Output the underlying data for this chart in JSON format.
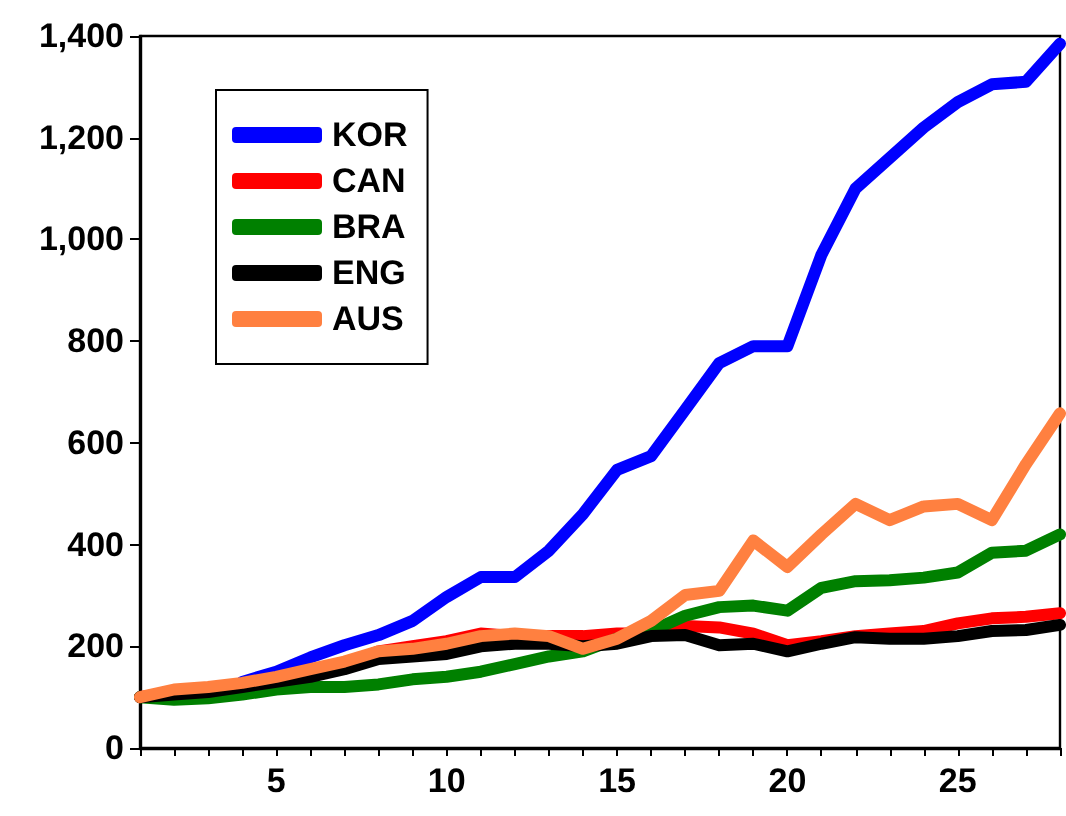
{
  "chart_data": {
    "type": "line",
    "x": [
      1,
      2,
      3,
      4,
      5,
      6,
      7,
      8,
      9,
      10,
      11,
      12,
      13,
      14,
      15,
      16,
      17,
      18,
      19,
      20,
      21,
      22,
      23,
      24,
      25,
      26,
      27,
      28
    ],
    "series": [
      {
        "name": "KOR",
        "color": "#0000ff",
        "values": [
          null,
          null,
          null,
          130,
          150,
          178,
          202,
          222,
          250,
          297,
          336,
          336,
          388,
          460,
          547,
          574,
          665,
          757,
          790,
          790,
          970,
          1100,
          1160,
          1220,
          1270,
          1305,
          1310,
          1385
        ]
      },
      {
        "name": "CAN",
        "color": "#ff0000",
        "values": [
          100,
          110,
          115,
          125,
          135,
          145,
          165,
          190,
          200,
          210,
          225,
          220,
          220,
          220,
          225,
          225,
          240,
          237,
          225,
          202,
          210,
          220,
          225,
          230,
          245,
          255,
          258,
          265
        ]
      },
      {
        "name": "BRA",
        "color": "#008000",
        "values": [
          100,
          95,
          98,
          105,
          115,
          120,
          120,
          125,
          135,
          140,
          150,
          165,
          180,
          190,
          215,
          230,
          260,
          277,
          280,
          270,
          315,
          328,
          330,
          335,
          345,
          384,
          388,
          420
        ]
      },
      {
        "name": "ENG",
        "color": "#000000",
        "values": [
          100,
          105,
          110,
          120,
          130,
          140,
          155,
          175,
          180,
          185,
          200,
          205,
          205,
          200,
          205,
          220,
          222,
          202,
          205,
          190,
          205,
          218,
          215,
          215,
          220,
          230,
          232,
          242
        ]
      },
      {
        "name": "AUS",
        "color": "#ff8040",
        "values": [
          100,
          115,
          120,
          128,
          140,
          155,
          170,
          190,
          195,
          205,
          220,
          225,
          220,
          195,
          215,
          250,
          301,
          309,
          408,
          356,
          420,
          480,
          448,
          475,
          480,
          448,
          558,
          658
        ]
      }
    ],
    "xlim": [
      1,
      28
    ],
    "xticks": [
      {
        "value": 1,
        "label": null
      },
      {
        "value": 2,
        "label": null
      },
      {
        "value": 3,
        "label": null
      },
      {
        "value": 4,
        "label": null
      },
      5,
      {
        "value": 6,
        "label": null
      },
      {
        "value": 7,
        "label": null
      },
      {
        "value": 8,
        "label": null
      },
      {
        "value": 9,
        "label": null
      },
      10,
      {
        "value": 11,
        "label": null
      },
      {
        "value": 12,
        "label": null
      },
      {
        "value": 13,
        "label": null
      },
      {
        "value": 14,
        "label": null
      },
      15,
      {
        "value": 16,
        "label": null
      },
      {
        "value": 17,
        "label": null
      },
      {
        "value": 18,
        "label": null
      },
      {
        "value": 19,
        "label": null
      },
      20,
      {
        "value": 21,
        "label": null
      },
      {
        "value": 22,
        "label": null
      },
      {
        "value": 23,
        "label": null
      },
      {
        "value": 24,
        "label": null
      },
      25,
      {
        "value": 26,
        "label": null
      },
      {
        "value": 27,
        "label": null
      },
      {
        "value": 28,
        "label": null
      }
    ],
    "ylim": [
      0,
      1400
    ],
    "yticks": [
      0,
      200,
      400,
      600,
      800,
      {
        "value": 1000,
        "label": "1,000"
      },
      {
        "value": 1200,
        "label": "1,200"
      },
      {
        "value": 1400,
        "label": "1,400"
      }
    ],
    "grid": false,
    "legend": "top left",
    "marker": "none",
    "line_style": "solid"
  }
}
